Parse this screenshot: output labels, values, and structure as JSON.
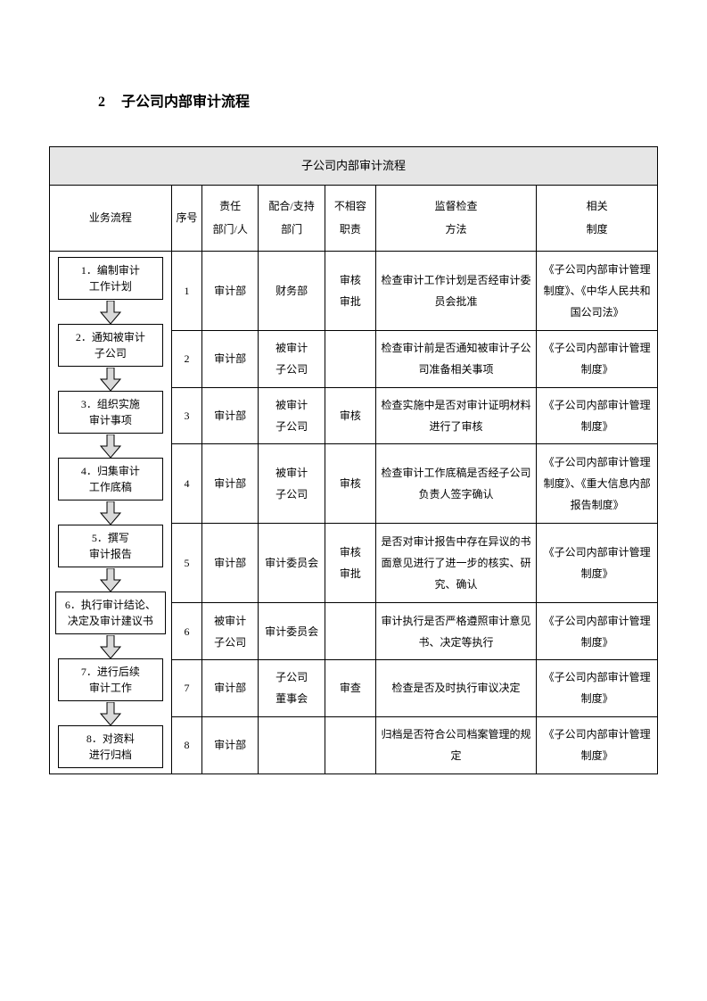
{
  "heading": {
    "num": "2",
    "text": "子公司内部审计流程"
  },
  "table": {
    "title": "子公司内部审计流程",
    "headers": {
      "flow": "业务流程",
      "seq": "序号",
      "dept": "责任\n部门/人",
      "support": "配合/支持\n部门",
      "duty": "不相容\n职责",
      "method": "监督检查\n方法",
      "system": "相关\n制度"
    },
    "rows": [
      {
        "seq": "1",
        "dept": "审计部",
        "support": "财务部",
        "duty": "审核\n审批",
        "method": "检查审计工作计划是否经审计委员会批准",
        "system": "《子公司内部审计管理制度》、《中华人民共和国公司法》"
      },
      {
        "seq": "2",
        "dept": "审计部",
        "support": "被审计\n子公司",
        "duty": "",
        "method": "检查审计前是否通知被审计子公司准备相关事项",
        "system": "《子公司内部审计管理制度》"
      },
      {
        "seq": "3",
        "dept": "审计部",
        "support": "被审计\n子公司",
        "duty": "审核",
        "method": "检查实施中是否对审计证明材料进行了审核",
        "system": "《子公司内部审计管理制度》"
      },
      {
        "seq": "4",
        "dept": "审计部",
        "support": "被审计\n子公司",
        "duty": "审核",
        "method": "检查审计工作底稿是否经子公司负责人签字确认",
        "system": "《子公司内部审计管理制度》、《重大信息内部报告制度》"
      },
      {
        "seq": "5",
        "dept": "审计部",
        "support": "审计委员会",
        "duty": "审核\n审批",
        "method": "是否对审计报告中存在异议的书面意见进行了进一步的核实、研究、确认",
        "system": "《子公司内部审计管理制度》"
      },
      {
        "seq": "6",
        "dept": "被审计\n子公司",
        "support": "审计委员会",
        "duty": "",
        "method": "审计执行是否严格遵照审计意见书、决定等执行",
        "system": "《子公司内部审计管理制度》"
      },
      {
        "seq": "7",
        "dept": "审计部",
        "support": "子公司\n董事会",
        "duty": "审查",
        "method": "检查是否及时执行审议决定",
        "system": "《子公司内部审计管理制度》"
      },
      {
        "seq": "8",
        "dept": "审计部",
        "support": "",
        "duty": "",
        "method": "归档是否符合公司档案管理的规定",
        "system": "《子公司内部审计管理制度》"
      }
    ],
    "flow_steps": [
      "1．编制审计\n工作计划",
      "2．通知被审计\n子公司",
      "3．组织实施\n审计事项",
      "4．归集审计\n工作底稿",
      "5．撰写\n审计报告",
      "6．执行审计结论、\n决定及审计建议书",
      "7．进行后续\n审计工作",
      "8．对资料\n进行归档"
    ]
  },
  "style": {
    "arrow_fill": "#d9d9d9",
    "arrow_stroke": "#000000"
  }
}
